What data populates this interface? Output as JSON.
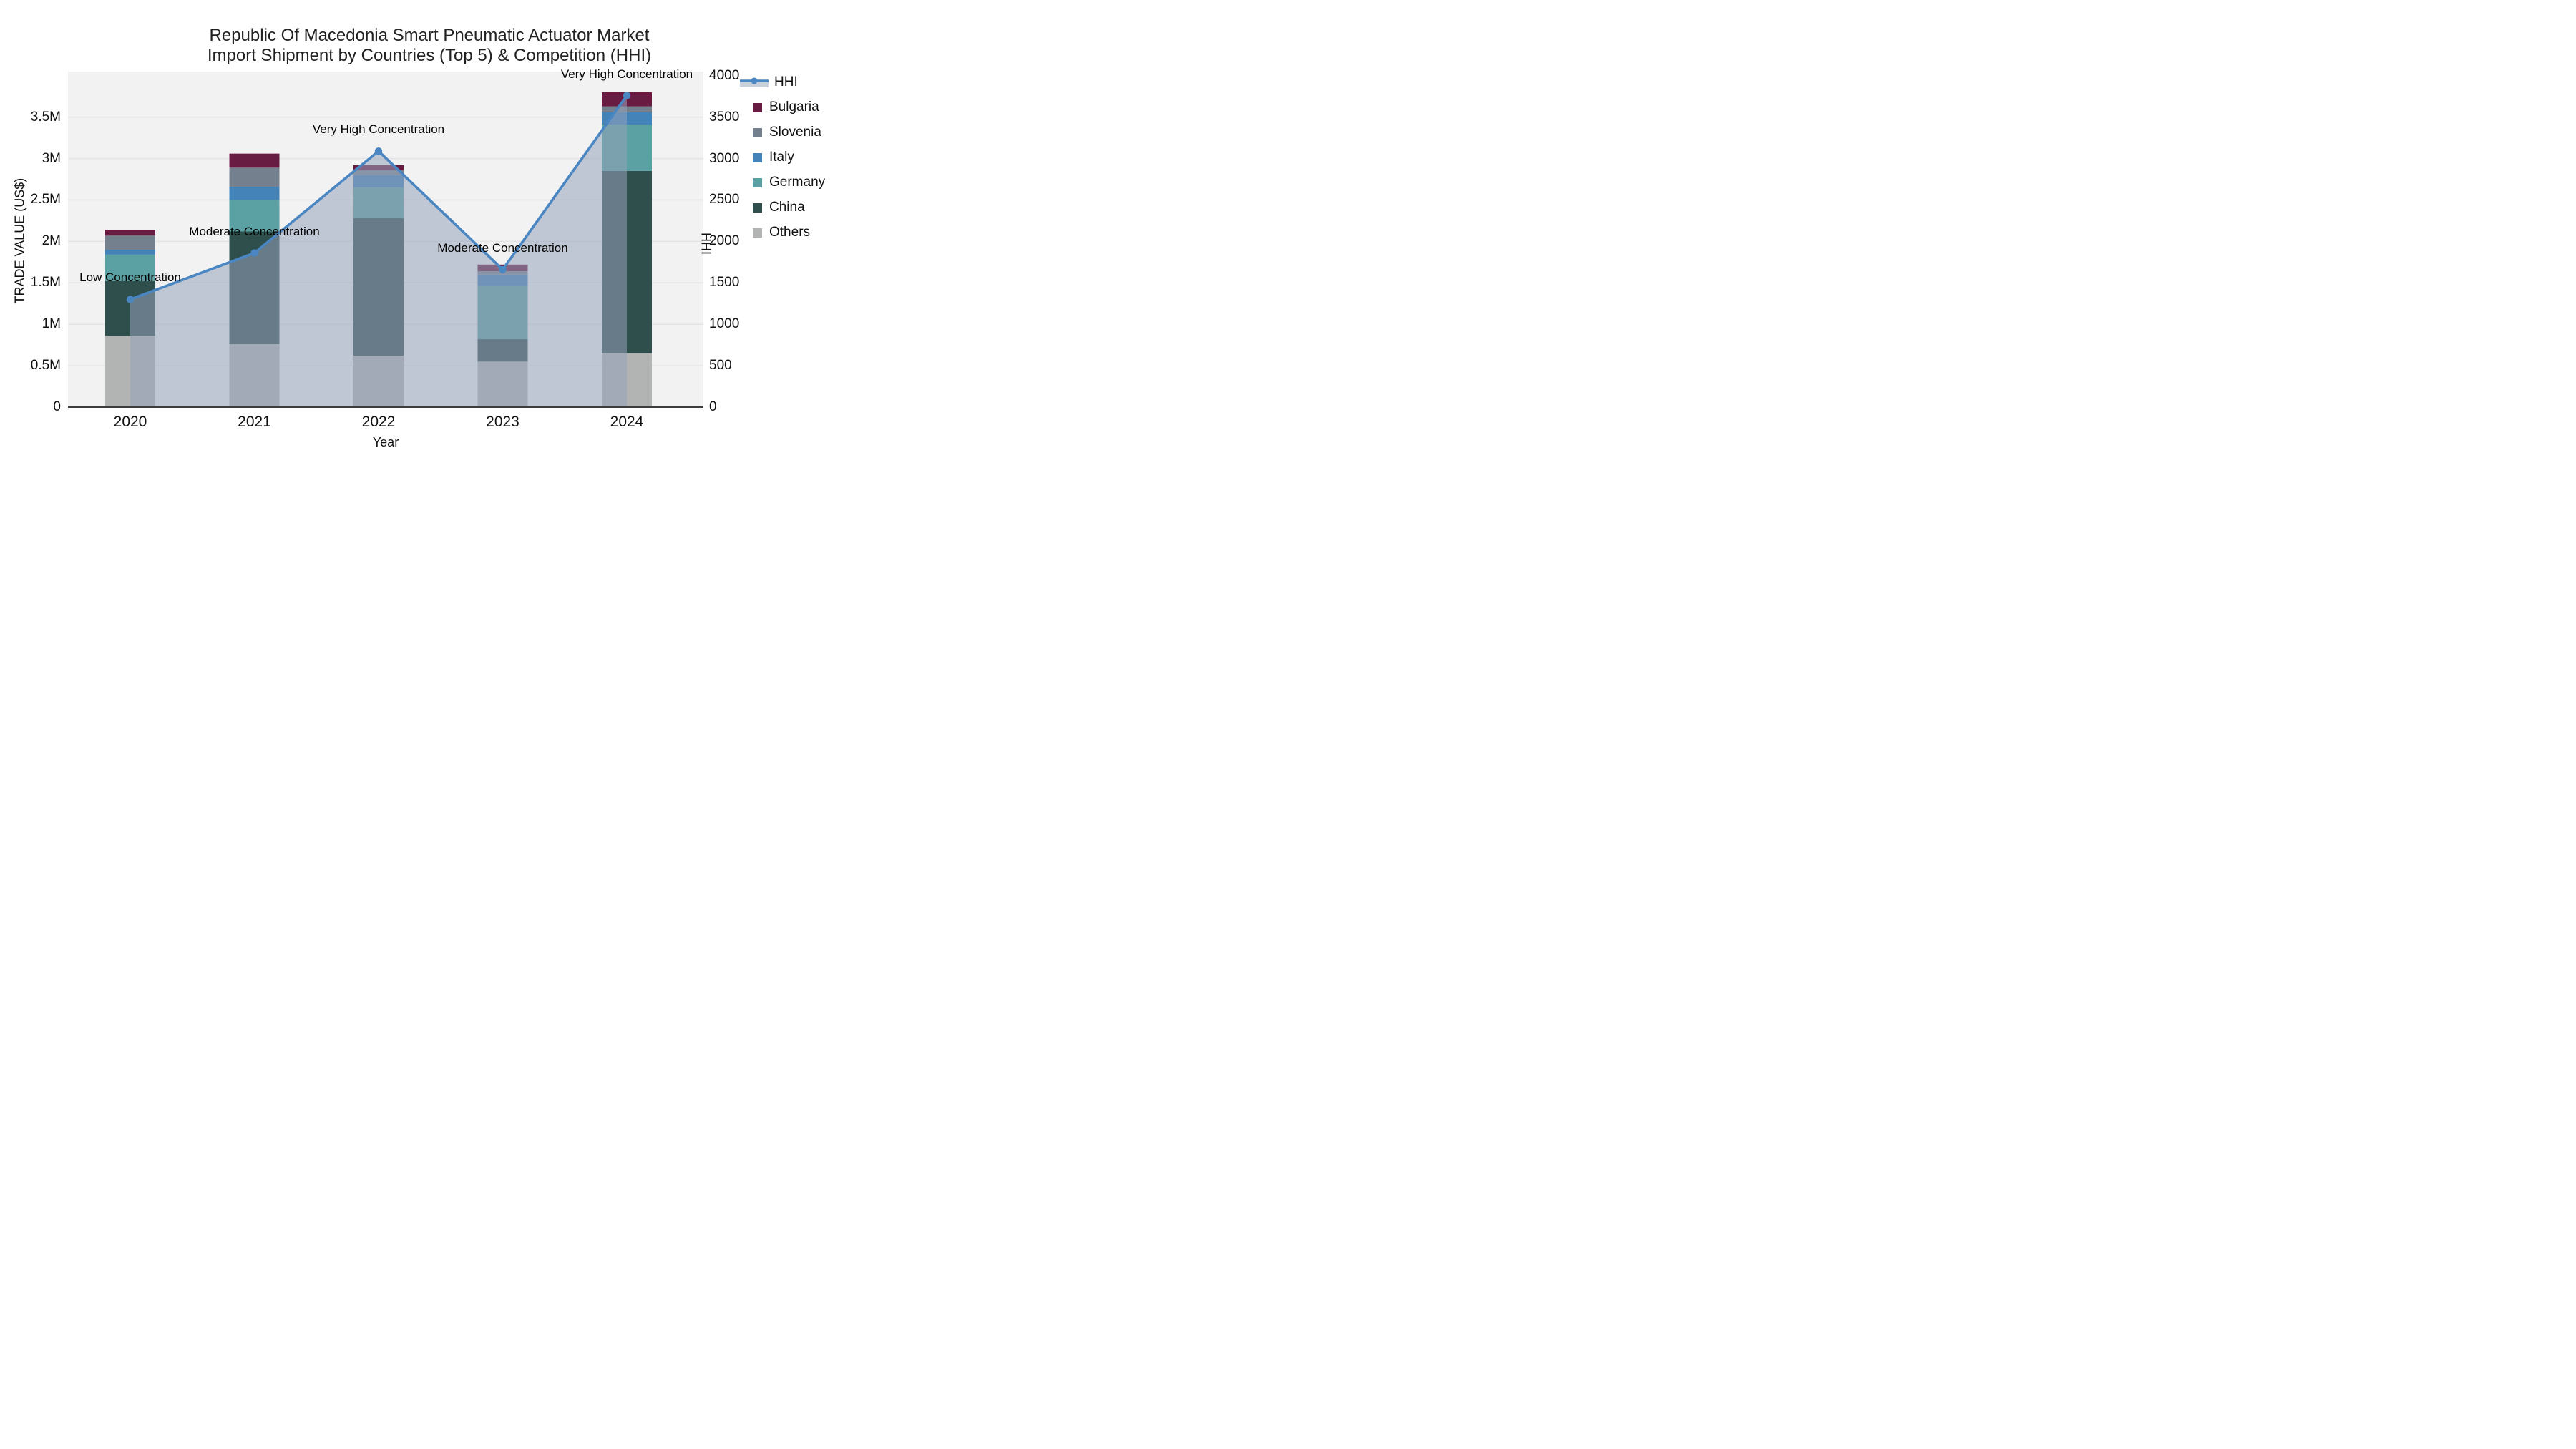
{
  "title": {
    "line1": "Republic Of Macedonia Smart Pneumatic Actuator Market",
    "line2": "Import Shipment by Countries (Top 5) & Competition (HHI)"
  },
  "chart_data": {
    "type": "bar",
    "subtype": "stacked-bars-with-line-overlay",
    "title": "Republic Of Macedonia Smart Pneumatic Actuator Market Import Shipment by Countries (Top 5) & Competition (HHI)",
    "categories": [
      "2020",
      "2021",
      "2022",
      "2023",
      "2024"
    ],
    "values_unit": "million US$",
    "series": [
      {
        "name": "Others",
        "color": "#b2b4b3",
        "values": [
          0.86,
          0.76,
          0.62,
          0.55,
          0.65
        ]
      },
      {
        "name": "China",
        "color": "#2f4f4d",
        "values": [
          0.66,
          1.36,
          1.66,
          0.27,
          2.2
        ]
      },
      {
        "name": "Germany",
        "color": "#5ba0a3",
        "values": [
          0.32,
          0.38,
          0.37,
          0.64,
          0.56
        ]
      },
      {
        "name": "Italy",
        "color": "#4383b8",
        "values": [
          0.06,
          0.16,
          0.15,
          0.14,
          0.15
        ]
      },
      {
        "name": "Slovenia",
        "color": "#75808f",
        "values": [
          0.17,
          0.23,
          0.06,
          0.04,
          0.07
        ]
      },
      {
        "name": "Bulgaria",
        "color": "#681c41",
        "values": [
          0.07,
          0.17,
          0.06,
          0.08,
          0.17
        ]
      }
    ],
    "bar_totals": [
      2.14,
      3.06,
      2.92,
      1.72,
      3.8
    ],
    "line_series": {
      "name": "HHI",
      "color": "#4a86c2",
      "area_fill": "rgba(150,163,185,0.55)",
      "values": [
        1300,
        1860,
        3090,
        1660,
        3760
      ]
    },
    "annotations": [
      {
        "category": "2020",
        "text": "Low Concentration"
      },
      {
        "category": "2021",
        "text": "Moderate Concentration"
      },
      {
        "category": "2022",
        "text": "Very High Concentration"
      },
      {
        "category": "2023",
        "text": "Moderate Concentration"
      },
      {
        "category": "2024",
        "text": "Very High Concentration"
      }
    ],
    "xlabel": "Year",
    "ylabel_left": "TRADE VALUE (US$)",
    "ylabel_right": "HHI",
    "yticks_left": {
      "labels": [
        "0",
        "0.5M",
        "1M",
        "1.5M",
        "2M",
        "2.5M",
        "3M",
        "3.5M"
      ],
      "values": [
        0,
        0.5,
        1,
        1.5,
        2,
        2.5,
        3,
        3.5
      ]
    },
    "yticks_right": {
      "labels": [
        "0",
        "500",
        "1000",
        "1500",
        "2000",
        "2500",
        "3000",
        "3500",
        "4000"
      ],
      "values": [
        0,
        500,
        1000,
        1500,
        2000,
        2500,
        3000,
        3500,
        4000
      ]
    },
    "ylim_left": [
      0,
      4.05
    ],
    "ylim_right": [
      0,
      4050
    ],
    "grid": true,
    "grid_color": "#e4e4e7",
    "plot_background": "#f2f2f3",
    "axis_line_color": "#3c3c3c",
    "legend_position": "right",
    "legend_order": [
      "HHI",
      "Bulgaria",
      "Slovenia",
      "Italy",
      "Germany",
      "China",
      "Others"
    ]
  }
}
